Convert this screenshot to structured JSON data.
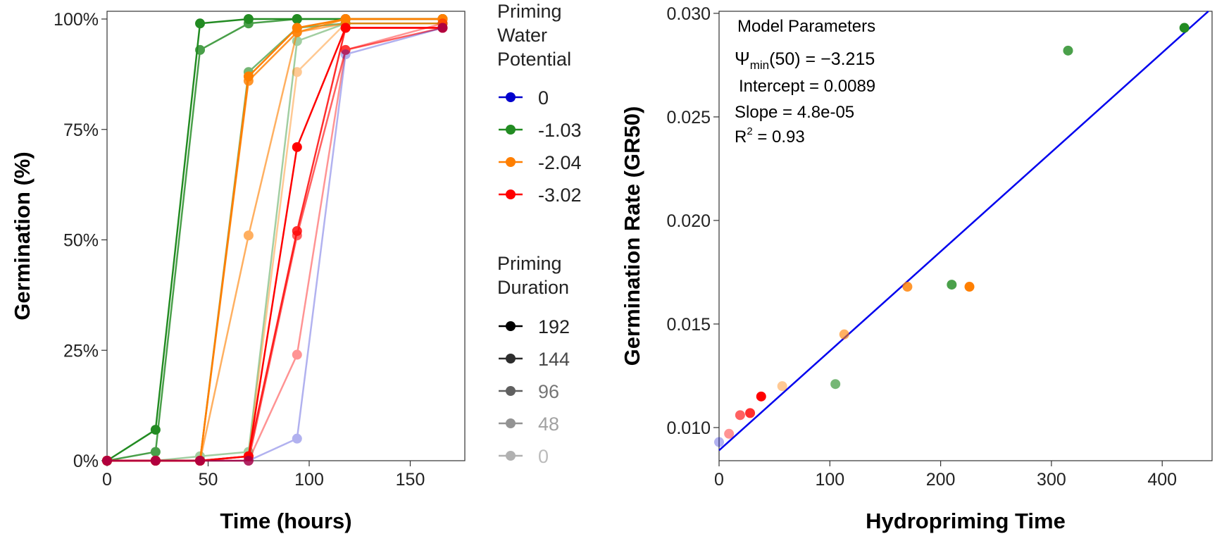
{
  "colors": {
    "0": "#0000CD",
    "-1.03": "#228B22",
    "-2.04": "#FF7F00",
    "-3.02": "#FF0000",
    "fit_line": "#0000EE"
  },
  "legend": {
    "potential_title": [
      "Priming",
      "Water",
      "Potential"
    ],
    "potential_items": [
      "0",
      "-1.03",
      "-2.04",
      "-3.02"
    ],
    "duration_title": [
      "Priming",
      "Duration"
    ],
    "duration_items": [
      "192",
      "144",
      "96",
      "48",
      "0"
    ]
  },
  "annotation": {
    "title": "Model Parameters",
    "psi_symbol": "Ψ",
    "psi_sub": "min",
    "psi_value": "(50) = −3.215",
    "intercept": "Intercept = 0.0089",
    "slope": "Slope = 4.8e-05",
    "r2_label": "R",
    "r2_sup": "2",
    "r2_value": " = 0.93"
  },
  "chart_data": [
    {
      "type": "line",
      "xlabel": "Time (hours)",
      "ylabel": "Germination (%)",
      "xlim": [
        0,
        177
      ],
      "ylim": [
        0,
        100
      ],
      "xticks": [
        0,
        50,
        100,
        150
      ],
      "yticks": [
        0,
        25,
        50,
        75,
        100
      ],
      "ytick_labels": [
        "0%",
        "25%",
        "50%",
        "75%",
        "100%"
      ],
      "x": [
        0,
        24,
        46,
        70,
        94,
        118,
        166
      ],
      "series": [
        {
          "name": "-1.03 / 192",
          "potential": "-1.03",
          "duration": "192",
          "values": [
            0,
            7,
            99,
            100,
            100,
            100,
            100
          ]
        },
        {
          "name": "-1.03 / 144",
          "potential": "-1.03",
          "duration": "144",
          "values": [
            0,
            2,
            93,
            99,
            100,
            100,
            100
          ]
        },
        {
          "name": "-1.03 / 96",
          "potential": "-1.03",
          "duration": "96",
          "values": [
            0,
            0,
            0,
            88,
            98,
            99,
            99
          ]
        },
        {
          "name": "-1.03 / 48",
          "potential": "-1.03",
          "duration": "48",
          "values": [
            0,
            0,
            1,
            2,
            95,
            99,
            99
          ]
        },
        {
          "name": "-2.04 / 192",
          "potential": "-2.04",
          "duration": "192",
          "values": [
            0,
            0,
            0,
            87,
            98,
            100,
            100
          ]
        },
        {
          "name": "-2.04 / 144",
          "potential": "-2.04",
          "duration": "144",
          "values": [
            0,
            0,
            0,
            86,
            97,
            100,
            100
          ]
        },
        {
          "name": "-2.04 / 96",
          "potential": "-2.04",
          "duration": "96",
          "values": [
            0,
            0,
            0,
            51,
            97,
            99,
            99
          ]
        },
        {
          "name": "-2.04 / 48",
          "potential": "-2.04",
          "duration": "48",
          "values": [
            0,
            0,
            0,
            1,
            88,
            99,
            99
          ]
        },
        {
          "name": "-3.02 / 192",
          "potential": "-3.02",
          "duration": "192",
          "values": [
            0,
            0,
            0,
            1,
            71,
            98,
            98
          ]
        },
        {
          "name": "-3.02 / 144",
          "potential": "-3.02",
          "duration": "144",
          "values": [
            0,
            0,
            0,
            1,
            52,
            98,
            98
          ]
        },
        {
          "name": "-3.02 / 96",
          "potential": "-3.02",
          "duration": "96",
          "values": [
            0,
            0,
            0,
            0,
            51,
            93,
            98
          ]
        },
        {
          "name": "-3.02 / 48",
          "potential": "-3.02",
          "duration": "48",
          "values": [
            0,
            0,
            0,
            0,
            24,
            93,
            99
          ]
        },
        {
          "name": "0 / 0",
          "potential": "0",
          "duration": "0",
          "values": [
            0,
            0,
            0,
            0,
            5,
            92,
            98
          ]
        }
      ]
    },
    {
      "type": "scatter",
      "xlabel": "Hydropriming Time",
      "ylabel": "Germination Rate (GR50)",
      "xlim": [
        0,
        445
      ],
      "ylim": [
        0.0084,
        0.0301
      ],
      "xticks": [
        0,
        100,
        200,
        300,
        400
      ],
      "yticks": [
        0.01,
        0.015,
        0.02,
        0.025,
        0.03
      ],
      "ytick_labels": [
        "0.010",
        "0.015",
        "0.020",
        "0.025",
        "0.030"
      ],
      "fit_line": {
        "intercept": 0.0089,
        "slope": 4.8e-05
      },
      "points": [
        {
          "x": 0,
          "y": 0.0093,
          "potential": "0",
          "duration": "0"
        },
        {
          "x": 9,
          "y": 0.0097,
          "potential": "-3.02",
          "duration": "48"
        },
        {
          "x": 19,
          "y": 0.0106,
          "potential": "-3.02",
          "duration": "96"
        },
        {
          "x": 28,
          "y": 0.0107,
          "potential": "-3.02",
          "duration": "144"
        },
        {
          "x": 38,
          "y": 0.0115,
          "potential": "-3.02",
          "duration": "192"
        },
        {
          "x": 57,
          "y": 0.012,
          "potential": "-2.04",
          "duration": "48"
        },
        {
          "x": 105,
          "y": 0.0121,
          "potential": "-1.03",
          "duration": "96"
        },
        {
          "x": 113,
          "y": 0.0145,
          "potential": "-2.04",
          "duration": "96"
        },
        {
          "x": 170,
          "y": 0.0168,
          "potential": "-2.04",
          "duration": "144"
        },
        {
          "x": 210,
          "y": 0.0169,
          "potential": "-1.03",
          "duration": "144"
        },
        {
          "x": 226,
          "y": 0.0168,
          "potential": "-2.04",
          "duration": "192"
        },
        {
          "x": 315,
          "y": 0.0282,
          "potential": "-1.03",
          "duration": "144"
        },
        {
          "x": 420,
          "y": 0.0293,
          "potential": "-1.03",
          "duration": "192"
        }
      ]
    }
  ]
}
